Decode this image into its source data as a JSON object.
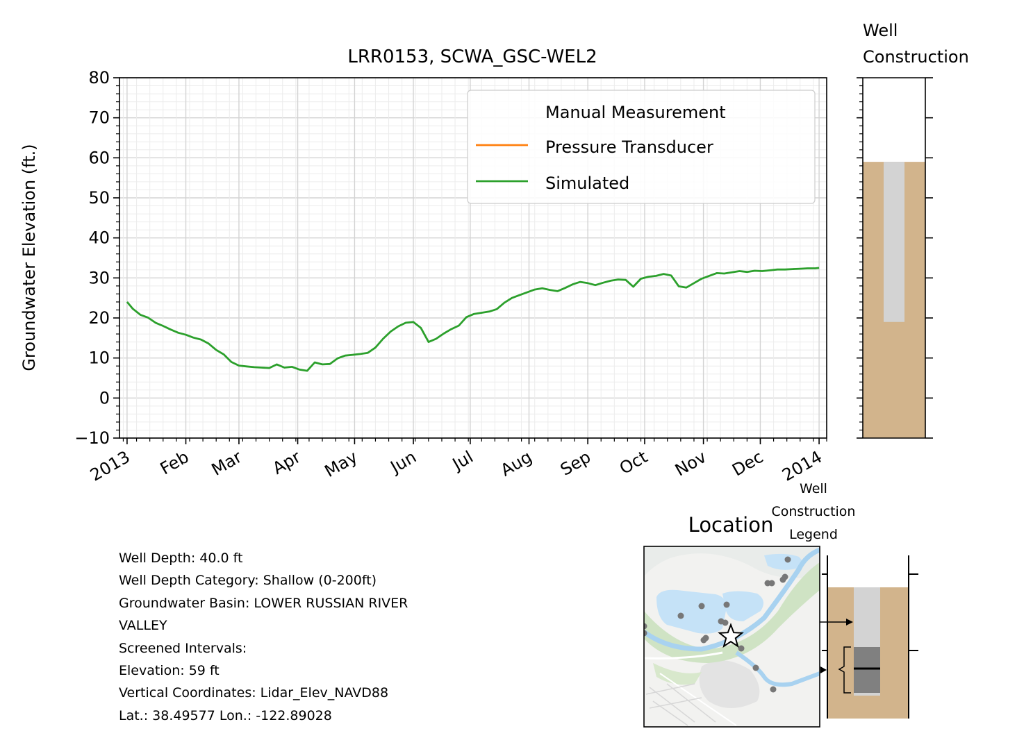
{
  "chart_data": {
    "type": "line",
    "title": "LRR0153, SCWA_GSC-WEL2",
    "ylabel": "Groundwater Elevation (ft.)",
    "xlabel": "",
    "ylim": [
      -10,
      80
    ],
    "yticks": [
      "−10",
      "0",
      "10",
      "20",
      "30",
      "40",
      "50",
      "60",
      "70",
      "80"
    ],
    "xlim": [
      "2012-12-28",
      "2014-01-05"
    ],
    "xticks": [
      {
        "date": "2013-01-01",
        "label": "2013"
      },
      {
        "date": "2013-02-01",
        "label": "Feb"
      },
      {
        "date": "2013-03-01",
        "label": "Mar"
      },
      {
        "date": "2013-04-01",
        "label": "Apr"
      },
      {
        "date": "2013-05-01",
        "label": "May"
      },
      {
        "date": "2013-06-01",
        "label": "Jun"
      },
      {
        "date": "2013-07-01",
        "label": "Jul"
      },
      {
        "date": "2013-08-01",
        "label": "Aug"
      },
      {
        "date": "2013-09-01",
        "label": "Sep"
      },
      {
        "date": "2013-10-01",
        "label": "Oct"
      },
      {
        "date": "2013-11-01",
        "label": "Nov"
      },
      {
        "date": "2013-12-01",
        "label": "Dec"
      },
      {
        "date": "2014-01-01",
        "label": "2014"
      }
    ],
    "grid": true,
    "legend_position": "upper right",
    "legend": [
      "Manual Measurement",
      "Pressure Transducer",
      "Simulated"
    ],
    "series": [
      {
        "name": "Manual Measurement",
        "color": "#1f77b4",
        "x": [],
        "y": []
      },
      {
        "name": "Pressure Transducer",
        "color": "#ff7f0e",
        "x": [],
        "y": []
      },
      {
        "name": "Simulated",
        "color": "#2ca02c",
        "x": [
          "2013-01-01",
          "2013-01-04",
          "2013-01-08",
          "2013-01-12",
          "2013-01-16",
          "2013-01-20",
          "2013-01-24",
          "2013-01-28",
          "2013-02-01",
          "2013-02-05",
          "2013-02-09",
          "2013-02-13",
          "2013-02-17",
          "2013-02-21",
          "2013-02-25",
          "2013-03-01",
          "2013-03-05",
          "2013-03-09",
          "2013-03-13",
          "2013-03-17",
          "2013-03-21",
          "2013-03-25",
          "2013-03-29",
          "2013-04-02",
          "2013-04-06",
          "2013-04-10",
          "2013-04-14",
          "2013-04-18",
          "2013-04-22",
          "2013-04-26",
          "2013-04-30",
          "2013-05-04",
          "2013-05-08",
          "2013-05-12",
          "2013-05-16",
          "2013-05-20",
          "2013-05-24",
          "2013-05-28",
          "2013-06-01",
          "2013-06-05",
          "2013-06-09",
          "2013-06-13",
          "2013-06-17",
          "2013-06-21",
          "2013-06-25",
          "2013-06-29",
          "2013-07-03",
          "2013-07-07",
          "2013-07-11",
          "2013-07-15",
          "2013-07-19",
          "2013-07-23",
          "2013-07-27",
          "2013-07-31",
          "2013-08-04",
          "2013-08-08",
          "2013-08-12",
          "2013-08-16",
          "2013-08-20",
          "2013-08-24",
          "2013-08-28",
          "2013-09-01",
          "2013-09-05",
          "2013-09-09",
          "2013-09-13",
          "2013-09-17",
          "2013-09-21",
          "2013-09-25",
          "2013-09-29",
          "2013-10-03",
          "2013-10-07",
          "2013-10-11",
          "2013-10-15",
          "2013-10-19",
          "2013-10-23",
          "2013-10-27",
          "2013-10-31",
          "2013-11-04",
          "2013-11-08",
          "2013-11-12",
          "2013-11-16",
          "2013-11-20",
          "2013-11-24",
          "2013-11-28",
          "2013-12-02",
          "2013-12-06",
          "2013-12-10",
          "2013-12-14",
          "2013-12-18",
          "2013-12-22",
          "2013-12-26",
          "2013-12-30",
          "2014-01-01"
        ],
        "y": [
          24.0,
          22.3,
          20.8,
          20.1,
          18.8,
          18.0,
          17.1,
          16.3,
          15.8,
          15.1,
          14.6,
          13.6,
          12.0,
          10.9,
          9.0,
          8.1,
          7.9,
          7.7,
          7.6,
          7.5,
          8.4,
          7.6,
          7.8,
          7.1,
          6.8,
          8.9,
          8.4,
          8.5,
          9.9,
          10.6,
          10.8,
          11.0,
          11.3,
          12.6,
          14.8,
          16.6,
          17.9,
          18.8,
          19.0,
          17.5,
          14.0,
          14.8,
          16.1,
          17.2,
          18.1,
          20.2,
          21.0,
          21.3,
          21.6,
          22.2,
          23.8,
          25.0,
          25.7,
          26.4,
          27.1,
          27.4,
          27.0,
          26.7,
          27.5,
          28.4,
          29.0,
          28.7,
          28.2,
          28.8,
          29.3,
          29.6,
          29.5,
          27.8,
          29.8,
          30.3,
          30.5,
          31.0,
          30.6,
          27.9,
          27.6,
          28.7,
          29.8,
          30.5,
          31.2,
          31.1,
          31.4,
          31.7,
          31.5,
          31.8,
          31.7,
          31.9,
          32.1,
          32.1,
          32.2,
          32.3,
          32.4,
          32.4,
          32.5
        ]
      }
    ]
  },
  "well_construction": {
    "title_line1": "Well",
    "title_line2": "Construction",
    "ground_elevation": 59,
    "casing_bottom": 19,
    "ylim": [
      -10,
      80
    ],
    "soil_color": "#d2b48c",
    "casing_color": "#d3d3d3"
  },
  "info": {
    "well_depth": "Well Depth: 40.0 ft",
    "depth_category": "Well Depth Category: Shallow (0-200ft)",
    "basin_line1": "Groundwater Basin: LOWER RUSSIAN RIVER",
    "basin_line2": "VALLEY",
    "screened": "Screened Intervals:",
    "elevation": "Elevation: 59 ft",
    "vertical_coords": "Vertical Coordinates: Lidar_Elev_NAVD88",
    "latlon": "Lat.: 38.49577 Lon.: -122.89028"
  },
  "location": {
    "title": "Location"
  },
  "legend_panel": {
    "title_line1": "Well",
    "title_line2": "Construction",
    "title_line3": "Legend"
  }
}
